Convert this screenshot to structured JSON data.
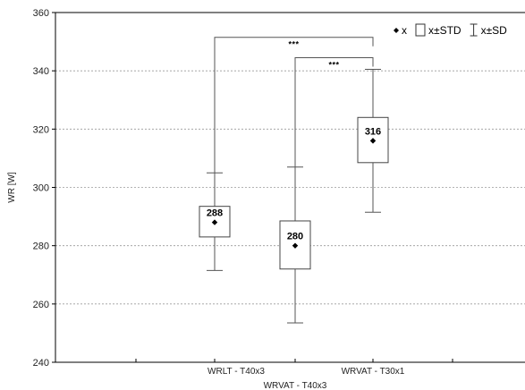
{
  "chart_data": {
    "type": "boxplot",
    "ylabel": "WR [W]",
    "ylim": [
      240,
      360
    ],
    "yticks": [
      240,
      260,
      280,
      300,
      320,
      340,
      360
    ],
    "grid": true,
    "legend_position": "top-right",
    "legend": [
      {
        "symbol": "diamond",
        "label": "x"
      },
      {
        "symbol": "box",
        "label": "x±STD"
      },
      {
        "symbol": "whisker",
        "label": "x±SD"
      }
    ],
    "categories": [
      "WRLT - T40x3",
      "WRVAT - T40x3",
      "WRVAT - T30x1"
    ],
    "groups": [
      {
        "category": "WRLT - T40x3",
        "mean": 288,
        "mean_label": "288",
        "box_low": 283,
        "box_high": 293.5,
        "whisker_low": 271.5,
        "whisker_high": 305
      },
      {
        "category": "WRVAT - T40x3",
        "mean": 280,
        "mean_label": "280",
        "box_low": 272,
        "box_high": 288.5,
        "whisker_low": 253.5,
        "whisker_high": 307
      },
      {
        "category": "WRVAT - T30x1",
        "mean": 316,
        "mean_label": "316",
        "box_low": 308.5,
        "box_high": 324,
        "whisker_low": 291.5,
        "whisker_high": 340.5
      }
    ],
    "significance": [
      {
        "from": "WRLT - T40x3",
        "to": "WRVAT - T30x1",
        "label": "***",
        "level": 351.5
      },
      {
        "from": "WRVAT - T40x3",
        "to": "WRVAT - T30x1",
        "label": "***",
        "level": 344.5
      }
    ]
  }
}
